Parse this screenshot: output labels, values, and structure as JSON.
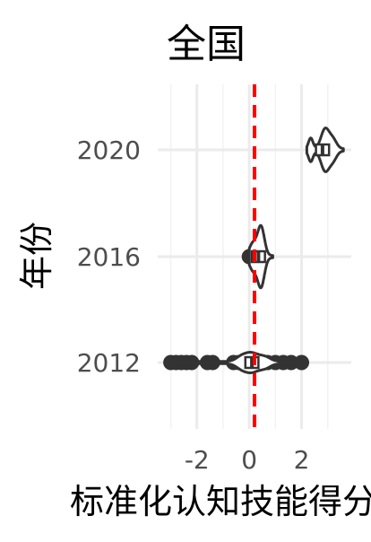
{
  "chart_data": {
    "type": "violin",
    "title": "全国",
    "xlabel": "标准化认知技能得分",
    "ylabel": "年份",
    "categories": [
      "2012",
      "2016",
      "2020"
    ],
    "x_ticks": [
      -2,
      0,
      2
    ],
    "xlim": [
      -3.5,
      3.9
    ],
    "grid": true,
    "reference_line": {
      "x": 0.2,
      "color": "#ff0000",
      "style": "dashed"
    },
    "series": [
      {
        "category": "2012",
        "violin_range": [
          -3.0,
          2.0
        ],
        "median": 0.1,
        "outliers": [
          -3.0,
          -2.8,
          -2.6,
          -2.4,
          -2.2,
          -1.6,
          -1.4,
          -0.6,
          -0.4,
          -0.3,
          0.5,
          0.7,
          1.0,
          1.3,
          1.6,
          2.0
        ]
      },
      {
        "category": "2016",
        "violin_range": [
          0.0,
          0.9
        ],
        "median": 0.35,
        "outliers": [
          0.0,
          0.1
        ]
      },
      {
        "category": "2020",
        "violin_range": [
          2.2,
          3.6
        ],
        "median": 2.8,
        "outliers": []
      }
    ]
  }
}
